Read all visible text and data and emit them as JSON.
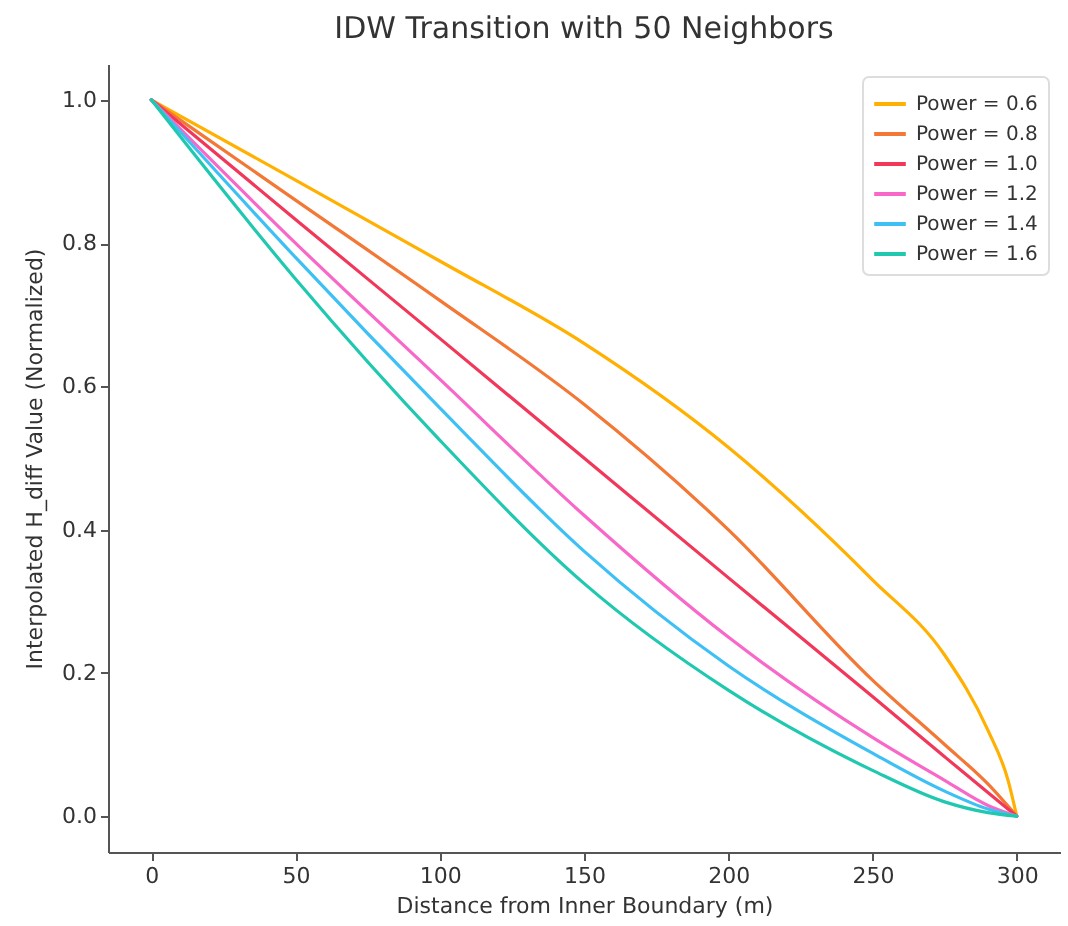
{
  "chart_data": {
    "type": "line",
    "title": "IDW Transition with 50 Neighbors",
    "xlabel": "Distance from Inner Boundary (m)",
    "ylabel": "Interpolated H_diff Value (Normalized)",
    "x": [
      0,
      50,
      100,
      150,
      200,
      250,
      275,
      290,
      300
    ],
    "series": [
      {
        "name": "Power = 0.6",
        "color": "#ffb000",
        "x": [
          0,
          50,
          100,
          150,
          200,
          250,
          275,
          290,
          297,
          300
        ],
        "values": [
          1.0,
          0.888,
          0.775,
          0.66,
          0.515,
          0.33,
          0.225,
          0.12,
          0.05,
          0.0
        ]
      },
      {
        "name": "Power = 0.8",
        "color": "#f37735",
        "values": [
          1.0,
          0.86,
          0.72,
          0.575,
          0.4,
          0.19,
          0.1,
          0.045,
          0.0
        ]
      },
      {
        "name": "Power = 1.0",
        "color": "#f2385a",
        "values": [
          1.0,
          0.833,
          0.667,
          0.5,
          0.333,
          0.167,
          0.083,
          0.033,
          0.0
        ]
      },
      {
        "name": "Power = 1.2",
        "color": "#f868c8",
        "values": [
          1.0,
          0.8,
          0.61,
          0.42,
          0.25,
          0.11,
          0.05,
          0.015,
          0.0
        ]
      },
      {
        "name": "Power = 1.4",
        "color": "#3ec0f5",
        "values": [
          1.0,
          0.78,
          0.57,
          0.37,
          0.21,
          0.088,
          0.035,
          0.01,
          0.0
        ]
      },
      {
        "name": "Power = 1.6",
        "color": "#20c8b0",
        "values": [
          1.0,
          0.75,
          0.525,
          0.325,
          0.176,
          0.064,
          0.02,
          0.005,
          0.0
        ]
      }
    ],
    "xlim": [
      -15,
      315
    ],
    "xticks": [
      0,
      50,
      100,
      150,
      200,
      250,
      300
    ],
    "ylim": [
      -0.05,
      1.05
    ],
    "yticks": [
      {
        "value": 0,
        "label": "0.0"
      },
      {
        "value": 0.2,
        "label": "0.2"
      },
      {
        "value": 0.4,
        "label": "0.4"
      },
      {
        "value": 0.6,
        "label": "0.6"
      },
      {
        "value": 0.8,
        "label": "0.8"
      },
      {
        "value": 1,
        "label": "1.0"
      }
    ],
    "grid": false,
    "legend": "top right",
    "marker": "none",
    "line_style": "solid"
  }
}
